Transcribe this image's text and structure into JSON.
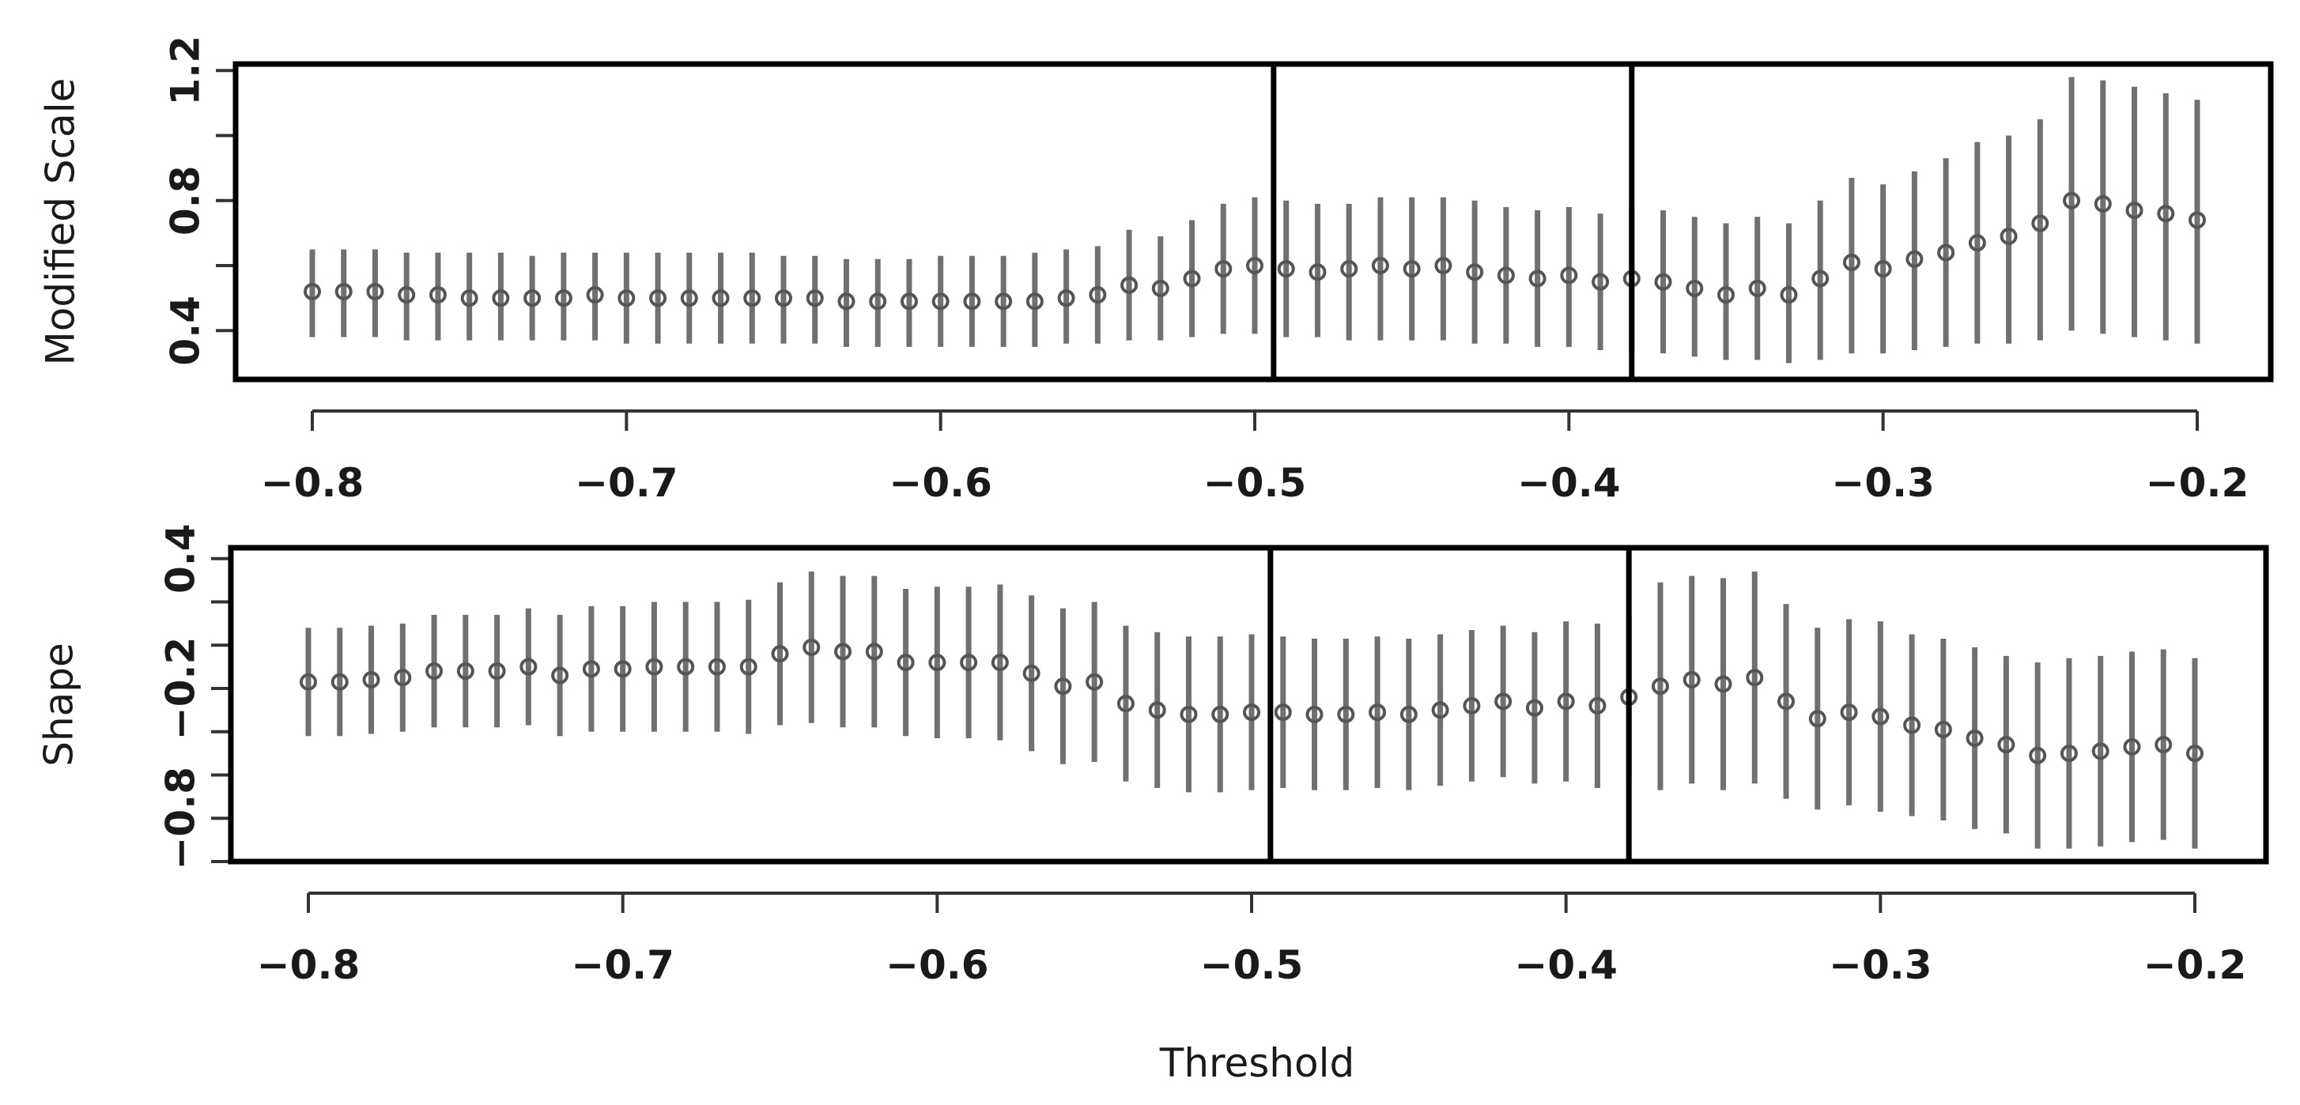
{
  "chart_data": [
    {
      "type": "scatter",
      "panel": "modified-scale",
      "xlabel": "",
      "ylabel": "Modified Scale",
      "xlim": [
        -0.8,
        -0.2
      ],
      "ylim": [
        0.25,
        1.22
      ],
      "xticks": [
        -0.8,
        -0.7,
        -0.6,
        -0.5,
        -0.4,
        -0.3,
        -0.2
      ],
      "xtick_labels": [
        "−0.8",
        "−0.7",
        "−0.6",
        "−0.5",
        "−0.4",
        "−0.3",
        "−0.2"
      ],
      "yticks": [
        0.4,
        0.6,
        0.8,
        1.0,
        1.2
      ],
      "ytick_labels": [
        "0.4",
        "",
        "0.8",
        "",
        "1.2"
      ],
      "vlines": [
        -0.494,
        -0.38
      ],
      "error_bars": true,
      "x": [
        -0.8,
        -0.79,
        -0.78,
        -0.77,
        -0.76,
        -0.75,
        -0.74,
        -0.73,
        -0.72,
        -0.71,
        -0.7,
        -0.69,
        -0.68,
        -0.67,
        -0.66,
        -0.65,
        -0.64,
        -0.63,
        -0.62,
        -0.61,
        -0.6,
        -0.59,
        -0.58,
        -0.57,
        -0.56,
        -0.55,
        -0.54,
        -0.53,
        -0.52,
        -0.51,
        -0.5,
        -0.49,
        -0.48,
        -0.47,
        -0.46,
        -0.45,
        -0.44,
        -0.43,
        -0.42,
        -0.41,
        -0.4,
        -0.39,
        -0.38,
        -0.37,
        -0.36,
        -0.35,
        -0.34,
        -0.33,
        -0.32,
        -0.31,
        -0.3,
        -0.29,
        -0.28,
        -0.27,
        -0.26,
        -0.25,
        -0.24,
        -0.23,
        -0.22,
        -0.21,
        -0.2
      ],
      "y": [
        0.52,
        0.52,
        0.52,
        0.51,
        0.51,
        0.5,
        0.5,
        0.5,
        0.5,
        0.51,
        0.5,
        0.5,
        0.5,
        0.5,
        0.5,
        0.5,
        0.5,
        0.49,
        0.49,
        0.49,
        0.49,
        0.49,
        0.49,
        0.49,
        0.5,
        0.51,
        0.54,
        0.53,
        0.56,
        0.59,
        0.6,
        0.59,
        0.58,
        0.59,
        0.6,
        0.59,
        0.6,
        0.58,
        0.57,
        0.56,
        0.57,
        0.55,
        0.56,
        0.55,
        0.53,
        0.51,
        0.53,
        0.51,
        0.56,
        0.61,
        0.59,
        0.62,
        0.64,
        0.67,
        0.69,
        0.73,
        0.8,
        0.79,
        0.77,
        0.76,
        0.74
      ],
      "lower": [
        0.38,
        0.38,
        0.38,
        0.37,
        0.37,
        0.37,
        0.37,
        0.37,
        0.37,
        0.37,
        0.36,
        0.36,
        0.36,
        0.36,
        0.36,
        0.36,
        0.36,
        0.35,
        0.35,
        0.35,
        0.35,
        0.35,
        0.35,
        0.35,
        0.36,
        0.36,
        0.37,
        0.37,
        0.38,
        0.39,
        0.39,
        0.38,
        0.38,
        0.37,
        0.37,
        0.37,
        0.37,
        0.36,
        0.36,
        0.35,
        0.35,
        0.34,
        0.34,
        0.33,
        0.32,
        0.31,
        0.31,
        0.3,
        0.31,
        0.33,
        0.33,
        0.34,
        0.35,
        0.36,
        0.36,
        0.37,
        0.4,
        0.39,
        0.38,
        0.37,
        0.36
      ],
      "upper": [
        0.65,
        0.65,
        0.65,
        0.64,
        0.64,
        0.64,
        0.64,
        0.63,
        0.64,
        0.64,
        0.64,
        0.64,
        0.64,
        0.64,
        0.64,
        0.63,
        0.63,
        0.62,
        0.62,
        0.62,
        0.63,
        0.63,
        0.63,
        0.64,
        0.65,
        0.66,
        0.71,
        0.69,
        0.74,
        0.79,
        0.81,
        0.8,
        0.79,
        0.79,
        0.81,
        0.81,
        0.81,
        0.8,
        0.78,
        0.77,
        0.78,
        0.76,
        0.78,
        0.77,
        0.75,
        0.73,
        0.75,
        0.73,
        0.8,
        0.87,
        0.85,
        0.89,
        0.93,
        0.98,
        1.0,
        1.05,
        1.18,
        1.17,
        1.15,
        1.13,
        1.11
      ]
    },
    {
      "type": "scatter",
      "panel": "shape",
      "xlabel": "Threshold",
      "ylabel": "Shape",
      "xlim": [
        -0.8,
        -0.2
      ],
      "ylim": [
        -1.0,
        0.45
      ],
      "xticks": [
        -0.8,
        -0.7,
        -0.6,
        -0.5,
        -0.4,
        -0.3,
        -0.2
      ],
      "xtick_labels": [
        "−0.8",
        "−0.7",
        "−0.6",
        "−0.5",
        "−0.4",
        "−0.3",
        "−0.2"
      ],
      "yticks": [
        -1.0,
        -0.8,
        -0.6,
        -0.4,
        -0.2,
        0.0,
        0.2,
        0.4
      ],
      "ytick_labels": [
        "",
        "−0.8",
        "",
        "",
        "−0.2",
        "",
        "",
        "0.4"
      ],
      "vlines": [
        -0.494,
        -0.38
      ],
      "error_bars": true,
      "x": [
        -0.8,
        -0.79,
        -0.78,
        -0.77,
        -0.76,
        -0.75,
        -0.74,
        -0.73,
        -0.72,
        -0.71,
        -0.7,
        -0.69,
        -0.68,
        -0.67,
        -0.66,
        -0.65,
        -0.64,
        -0.63,
        -0.62,
        -0.61,
        -0.6,
        -0.59,
        -0.58,
        -0.57,
        -0.56,
        -0.55,
        -0.54,
        -0.53,
        -0.52,
        -0.51,
        -0.5,
        -0.49,
        -0.48,
        -0.47,
        -0.46,
        -0.45,
        -0.44,
        -0.43,
        -0.42,
        -0.41,
        -0.4,
        -0.39,
        -0.38,
        -0.37,
        -0.36,
        -0.35,
        -0.34,
        -0.33,
        -0.32,
        -0.31,
        -0.3,
        -0.29,
        -0.28,
        -0.27,
        -0.26,
        -0.25,
        -0.24,
        -0.23,
        -0.22,
        -0.21,
        -0.2
      ],
      "y": [
        -0.17,
        -0.17,
        -0.16,
        -0.15,
        -0.12,
        -0.12,
        -0.12,
        -0.1,
        -0.14,
        -0.11,
        -0.11,
        -0.1,
        -0.1,
        -0.1,
        -0.1,
        -0.04,
        -0.01,
        -0.03,
        -0.03,
        -0.08,
        -0.08,
        -0.08,
        -0.08,
        -0.13,
        -0.19,
        -0.17,
        -0.27,
        -0.3,
        -0.32,
        -0.32,
        -0.31,
        -0.31,
        -0.32,
        -0.32,
        -0.31,
        -0.32,
        -0.3,
        -0.28,
        -0.26,
        -0.29,
        -0.26,
        -0.28,
        -0.24,
        -0.19,
        -0.16,
        -0.18,
        -0.15,
        -0.26,
        -0.34,
        -0.31,
        -0.33,
        -0.37,
        -0.39,
        -0.43,
        -0.46,
        -0.51,
        -0.5,
        -0.49,
        -0.47,
        -0.46,
        -0.5
      ],
      "lower": [
        -0.42,
        -0.42,
        -0.41,
        -0.4,
        -0.38,
        -0.38,
        -0.38,
        -0.37,
        -0.42,
        -0.4,
        -0.4,
        -0.4,
        -0.4,
        -0.4,
        -0.41,
        -0.37,
        -0.36,
        -0.38,
        -0.38,
        -0.42,
        -0.43,
        -0.43,
        -0.44,
        -0.49,
        -0.55,
        -0.54,
        -0.63,
        -0.66,
        -0.68,
        -0.68,
        -0.67,
        -0.66,
        -0.67,
        -0.67,
        -0.66,
        -0.67,
        -0.65,
        -0.63,
        -0.61,
        -0.64,
        -0.63,
        -0.66,
        -0.61,
        -0.67,
        -0.64,
        -0.67,
        -0.64,
        -0.71,
        -0.76,
        -0.74,
        -0.77,
        -0.79,
        -0.81,
        -0.85,
        -0.87,
        -0.94,
        -0.94,
        -0.93,
        -0.91,
        -0.9,
        -0.94
      ],
      "upper": [
        0.08,
        0.08,
        0.09,
        0.1,
        0.14,
        0.14,
        0.14,
        0.17,
        0.14,
        0.18,
        0.18,
        0.2,
        0.2,
        0.2,
        0.21,
        0.29,
        0.34,
        0.32,
        0.32,
        0.26,
        0.27,
        0.27,
        0.28,
        0.23,
        0.17,
        0.2,
        0.09,
        0.06,
        0.04,
        0.04,
        0.05,
        0.04,
        0.03,
        0.03,
        0.04,
        0.03,
        0.05,
        0.07,
        0.09,
        0.06,
        0.11,
        0.1,
        0.13,
        0.29,
        0.32,
        0.31,
        0.34,
        0.19,
        0.08,
        0.12,
        0.11,
        0.05,
        0.03,
        -0.01,
        -0.05,
        -0.08,
        -0.06,
        -0.05,
        -0.03,
        -0.02,
        -0.06
      ]
    }
  ]
}
